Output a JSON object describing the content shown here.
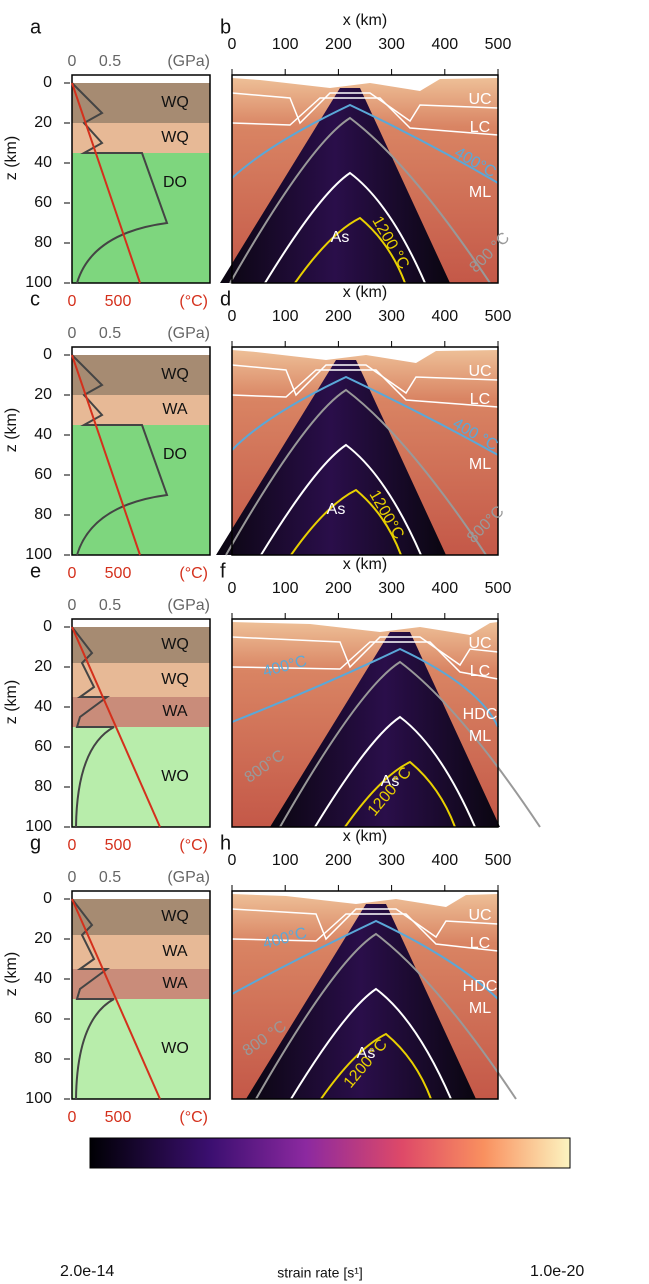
{
  "panels": [
    {
      "letter_left": "a",
      "letter_right": "b",
      "strength_ticks": [
        "0",
        "0.5"
      ],
      "strength_unit": "(GPa)",
      "temp_ticks": [
        "0",
        "500"
      ],
      "temp_unit": "(°C)",
      "z_label": "z (km)",
      "z_ticks": [
        "0",
        "20",
        "40",
        "60",
        "80",
        "100"
      ],
      "layers": [
        {
          "label": "WQ",
          "top": 0,
          "bottom": 20,
          "color": "#a68b72"
        },
        {
          "label": "WQ",
          "top": 20,
          "bottom": 35,
          "color": "#e7b996"
        },
        {
          "label": "DO",
          "top": 35,
          "bottom": 100,
          "color": "#7ed67e"
        }
      ],
      "x_label": "x (km)",
      "x_ticks": [
        "0",
        "100",
        "200",
        "300",
        "400",
        "500"
      ],
      "zones": [
        "UC",
        "LC",
        "ML",
        "As"
      ],
      "isotherms": [
        "400°C",
        "800 °C",
        "1200 °C"
      ]
    },
    {
      "letter_left": "c",
      "letter_right": "d",
      "strength_ticks": [
        "0",
        "0.5"
      ],
      "strength_unit": "(GPa)",
      "temp_ticks": [
        "0",
        "500"
      ],
      "temp_unit": "(°C)",
      "z_label": "z (km)",
      "z_ticks": [
        "0",
        "20",
        "40",
        "60",
        "80",
        "100"
      ],
      "layers": [
        {
          "label": "WQ",
          "top": 0,
          "bottom": 20,
          "color": "#a68b72"
        },
        {
          "label": "WA",
          "top": 20,
          "bottom": 35,
          "color": "#e7b996"
        },
        {
          "label": "DO",
          "top": 35,
          "bottom": 100,
          "color": "#7ed67e"
        }
      ],
      "x_label": "x (km)",
      "x_ticks": [
        "0",
        "100",
        "200",
        "300",
        "400",
        "500"
      ],
      "zones": [
        "UC",
        "LC",
        "ML",
        "As"
      ],
      "isotherms": [
        "400 °C",
        "800°C",
        "1200°C"
      ]
    },
    {
      "letter_left": "e",
      "letter_right": "f",
      "strength_ticks": [
        "0",
        "0.5"
      ],
      "strength_unit": "(GPa)",
      "temp_ticks": [
        "0",
        "500"
      ],
      "temp_unit": "(°C)",
      "z_label": "z (km)",
      "z_ticks": [
        "0",
        "20",
        "40",
        "60",
        "80",
        "100"
      ],
      "layers": [
        {
          "label": "WQ",
          "top": 0,
          "bottom": 18,
          "color": "#a68b72"
        },
        {
          "label": "WQ",
          "top": 18,
          "bottom": 35,
          "color": "#e7b996"
        },
        {
          "label": "WA",
          "top": 35,
          "bottom": 50,
          "color": "#c98c7a"
        },
        {
          "label": "WO",
          "top": 50,
          "bottom": 100,
          "color": "#b8edab"
        }
      ],
      "x_label": "x (km)",
      "x_ticks": [
        "0",
        "100",
        "200",
        "300",
        "400",
        "500"
      ],
      "zones": [
        "UC",
        "LC",
        "HDC",
        "ML",
        "As"
      ],
      "isotherms": [
        "400°C",
        "800°C",
        "1200 °C"
      ]
    },
    {
      "letter_left": "g",
      "letter_right": "h",
      "strength_ticks": [
        "0",
        "0.5"
      ],
      "strength_unit": "(GPa)",
      "temp_ticks": [
        "0",
        "500"
      ],
      "temp_unit": "(°C)",
      "z_label": "z (km)",
      "z_ticks": [
        "0",
        "20",
        "40",
        "60",
        "80",
        "100"
      ],
      "layers": [
        {
          "label": "WQ",
          "top": 0,
          "bottom": 18,
          "color": "#a68b72"
        },
        {
          "label": "WA",
          "top": 18,
          "bottom": 35,
          "color": "#e7b996"
        },
        {
          "label": "WA",
          "top": 35,
          "bottom": 50,
          "color": "#c98c7a"
        },
        {
          "label": "WO",
          "top": 50,
          "bottom": 100,
          "color": "#b8edab"
        }
      ],
      "x_label": "x (km)",
      "x_ticks": [
        "0",
        "100",
        "200",
        "300",
        "400",
        "500"
      ],
      "zones": [
        "UC",
        "LC",
        "HDC",
        "ML",
        "As"
      ],
      "isotherms": [
        "400°C",
        "800 °C",
        "1200 °C"
      ]
    }
  ],
  "colorbar": {
    "min_label": "2.0e-14",
    "label": "strain rate [s¹]",
    "max_label": "1.0e-20"
  }
}
